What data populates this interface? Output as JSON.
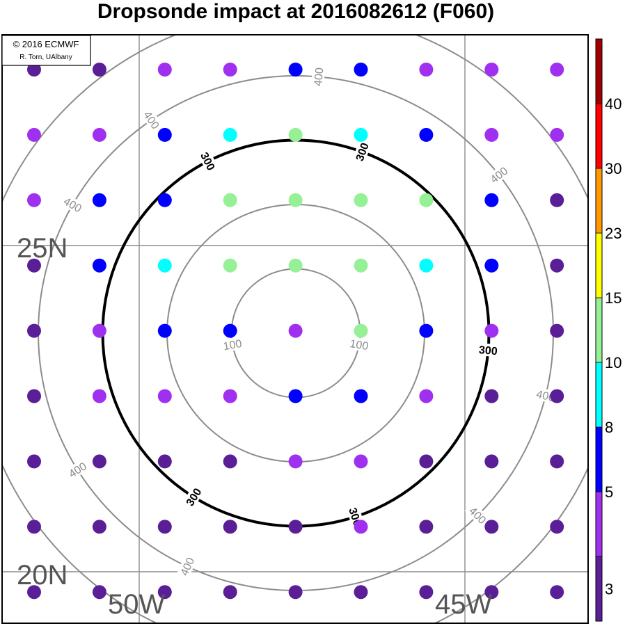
{
  "title": "Dropsonde impact at 2016082612 (F060)",
  "credit": {
    "line1": "© 2016 ECMWF",
    "line2": "R. Torn, UAlbany"
  },
  "lat_labels": [
    "25N",
    "20N"
  ],
  "lon_labels": [
    "50W",
    "45W"
  ],
  "contours": [
    {
      "value": 100,
      "label": "100",
      "color": "#8c8c8c",
      "bold": false
    },
    {
      "value": 200,
      "label": "",
      "color": "#8c8c8c",
      "bold": false
    },
    {
      "value": 300,
      "label": "300",
      "color": "#000000",
      "bold": true
    },
    {
      "value": 400,
      "label": "400",
      "color": "#8c8c8c",
      "bold": false
    },
    {
      "value": 500,
      "label": "",
      "color": "#8c8c8c",
      "bold": false
    }
  ],
  "colorbar": {
    "levels": [
      "3",
      "5",
      "8",
      "10",
      "15",
      "23",
      "30",
      "40"
    ],
    "colors": [
      "#5a1e96",
      "#a030f0",
      "#0000ff",
      "#00ffff",
      "#96f096",
      "#ffff00",
      "#ff9900",
      "#ff0000",
      "#a00000"
    ]
  },
  "dot_bins": {
    "0": "dark-purple",
    "1": "purple",
    "2": "blue",
    "3": "cyan",
    "4": "light-green"
  },
  "dot_grid": [
    [
      0,
      0,
      1,
      1,
      2,
      2,
      1,
      1,
      1
    ],
    [
      1,
      1,
      2,
      3,
      4,
      3,
      2,
      1,
      1
    ],
    [
      1,
      2,
      2,
      4,
      4,
      4,
      4,
      2,
      0
    ],
    [
      0,
      2,
      3,
      4,
      4,
      4,
      3,
      2,
      0
    ],
    [
      0,
      1,
      2,
      2,
      1,
      4,
      2,
      1,
      0
    ],
    [
      0,
      1,
      1,
      1,
      2,
      2,
      1,
      0,
      0
    ],
    [
      0,
      0,
      0,
      0,
      1,
      1,
      0,
      0,
      0
    ],
    [
      0,
      0,
      0,
      0,
      0,
      1,
      0,
      0,
      0
    ],
    [
      0,
      0,
      0,
      0,
      0,
      0,
      0,
      0,
      0
    ]
  ]
}
